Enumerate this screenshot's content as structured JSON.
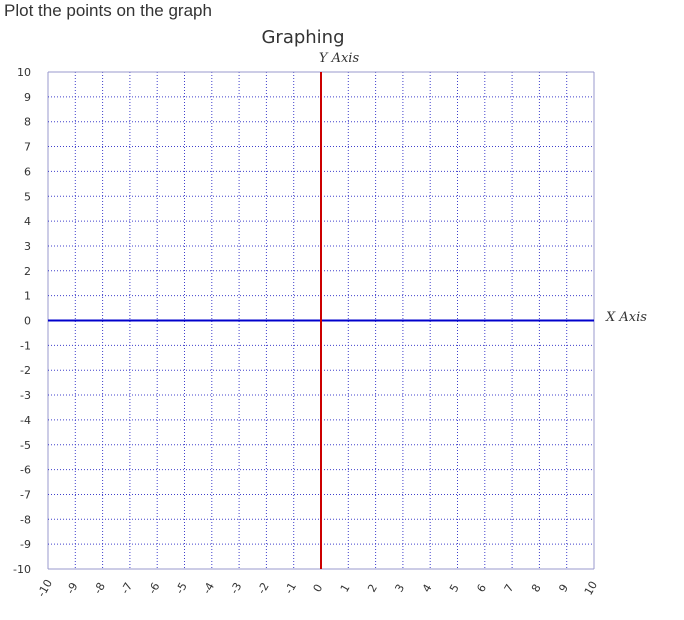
{
  "page": {
    "instruction": "Plot the points on the graph"
  },
  "chart_data": {
    "type": "scatter",
    "title": "Graphing",
    "xlabel": "X Axis",
    "ylabel": "Y Axis",
    "xlim": [
      -10,
      10
    ],
    "ylim": [
      -10,
      10
    ],
    "grid": true,
    "x_ticks": [
      "-10",
      "-9",
      "-8",
      "-7",
      "-6",
      "-5",
      "-4",
      "-3",
      "-2",
      "-1",
      "0",
      "1",
      "2",
      "3",
      "4",
      "5",
      "6",
      "7",
      "8",
      "9",
      "10"
    ],
    "y_ticks": [
      "10",
      "9",
      "8",
      "7",
      "6",
      "5",
      "4",
      "3",
      "2",
      "1",
      "0",
      "-1",
      "-2",
      "-3",
      "-4",
      "-5",
      "-6",
      "-7",
      "-8",
      "-9",
      "-10"
    ],
    "points": [],
    "colors": {
      "x_axis": "#0000cc",
      "y_axis": "#cc0000",
      "grid": "#4040cc",
      "frame": "#9999cc"
    }
  }
}
